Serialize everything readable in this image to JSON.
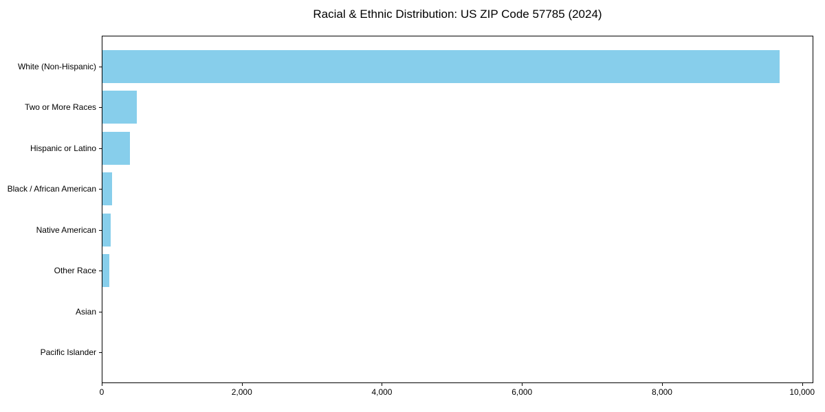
{
  "chart_data": {
    "type": "bar",
    "orientation": "horizontal",
    "title": "Racial & Ethnic Distribution: US ZIP Code 57785 (2024)",
    "categories": [
      "White (Non-Hispanic)",
      "Two or More Races",
      "Hispanic or Latino",
      "Black / African American",
      "Native American",
      "Other Race",
      "Asian",
      "Pacific Islander"
    ],
    "values": [
      9665,
      490,
      395,
      140,
      120,
      100,
      0,
      0
    ],
    "xlabel": "",
    "ylabel": "",
    "xlim": [
      0,
      10160
    ],
    "xticks": [
      0,
      2000,
      4000,
      6000,
      8000,
      10000
    ],
    "xtick_labels": [
      "0",
      "2,000",
      "4,000",
      "6,000",
      "8,000",
      "10,000"
    ],
    "grid": false,
    "legend": false,
    "bar_color": "#87CEEB",
    "axis_color": "#000000",
    "text_color": "#000000"
  }
}
